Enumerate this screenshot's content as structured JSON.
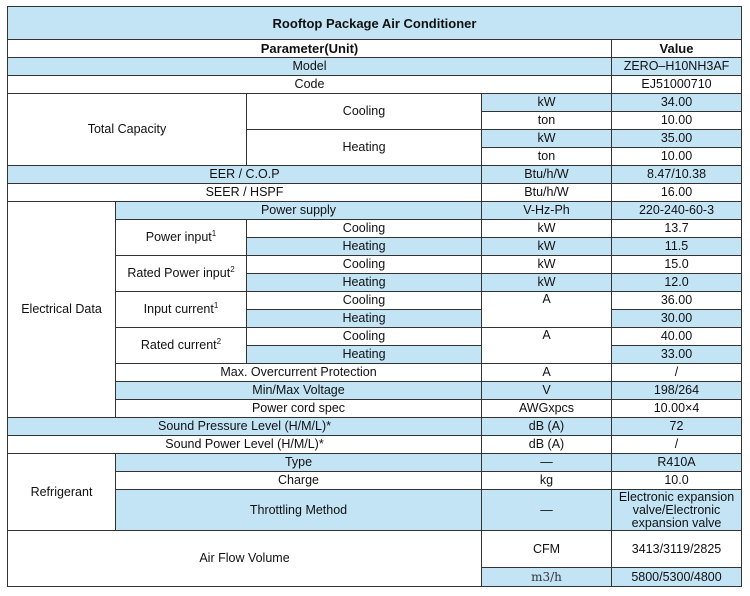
{
  "title": "Rooftop Package Air Conditioner",
  "header": {
    "parameter": "Parameter(Unit)",
    "value": "Value"
  },
  "rows": {
    "model": {
      "label": "Model",
      "value": "ZERO–H10NH3AF"
    },
    "code": {
      "label": "Code",
      "value": "EJ51000710"
    },
    "total_capacity": {
      "label": "Total Capacity",
      "cooling": "Cooling",
      "heating": "Heating",
      "cooling_kw": {
        "unit": "kW",
        "value": "34.00"
      },
      "cooling_ton": {
        "unit": "ton",
        "value": "10.00"
      },
      "heating_kw": {
        "unit": "kW",
        "value": "35.00"
      },
      "heating_ton": {
        "unit": "ton",
        "value": "10.00"
      }
    },
    "eer": {
      "label": "EER / C.O.P",
      "unit": "Btu/h/W",
      "value": "8.47/10.38"
    },
    "seer": {
      "label": "SEER / HSPF",
      "unit": "Btu/h/W",
      "value": "16.00"
    },
    "electrical": {
      "label": "Electrical Data",
      "power_supply": {
        "label": "Power supply",
        "unit": "V-Hz-Ph",
        "value": "220-240-60-3"
      },
      "power_input": {
        "label": "Power input",
        "sup": "1",
        "unit": "kW",
        "cooling": "Cooling",
        "cooling_value": "13.7",
        "heating": "Heating",
        "heating_value": "11.5"
      },
      "rated_power_input": {
        "label": "Rated Power input",
        "sup": "2",
        "cooling": "Cooling",
        "cooling_unit": "kW",
        "cooling_value": "15.0",
        "heating": "Heating",
        "heating_unit": "kW",
        "heating_value": "12.0"
      },
      "input_current": {
        "label": "Input current",
        "sup": "1",
        "unit": "A",
        "cooling": "Cooling",
        "cooling_value": "36.00",
        "heating": "Heating",
        "heating_value": "30.00"
      },
      "rated_current": {
        "label": "Rated current",
        "sup": "2",
        "unit": "A",
        "cooling": "Cooling",
        "cooling_value": "40.00",
        "heating": "Heating",
        "heating_value": "33.00"
      },
      "overcurrent": {
        "label": "Max. Overcurrent Protection",
        "unit": "A",
        "value": "/"
      },
      "voltage": {
        "label": "Min/Max Voltage",
        "unit": "V",
        "value": "198/264"
      },
      "power_cord": {
        "label": "Power cord spec",
        "unit": "AWGxpcs",
        "value": "10.00×4"
      }
    },
    "sound_pressure": {
      "label": "Sound Pressure Level (H/M/L)*",
      "unit": "dB (A)",
      "value": "72"
    },
    "sound_power": {
      "label": "Sound Power Level (H/M/L)*",
      "unit": "dB (A)",
      "value": "/"
    },
    "refrigerant": {
      "label": "Refrigerant",
      "type": {
        "label": "Type",
        "unit": "—",
        "value": "R410A"
      },
      "charge": {
        "label": "Charge",
        "unit": "kg",
        "value": "10.0"
      },
      "throttling": {
        "label": "Throttling Method",
        "unit": "—",
        "value": "Electronic expansion valve/Electronic expansion valve"
      }
    },
    "airflow": {
      "label": "Air Flow Volume",
      "cfm": {
        "unit": "CFM",
        "value": "3413/3119/2825"
      },
      "m3h": {
        "unit": "m3/h",
        "value": "5800/5300/4800"
      }
    }
  }
}
